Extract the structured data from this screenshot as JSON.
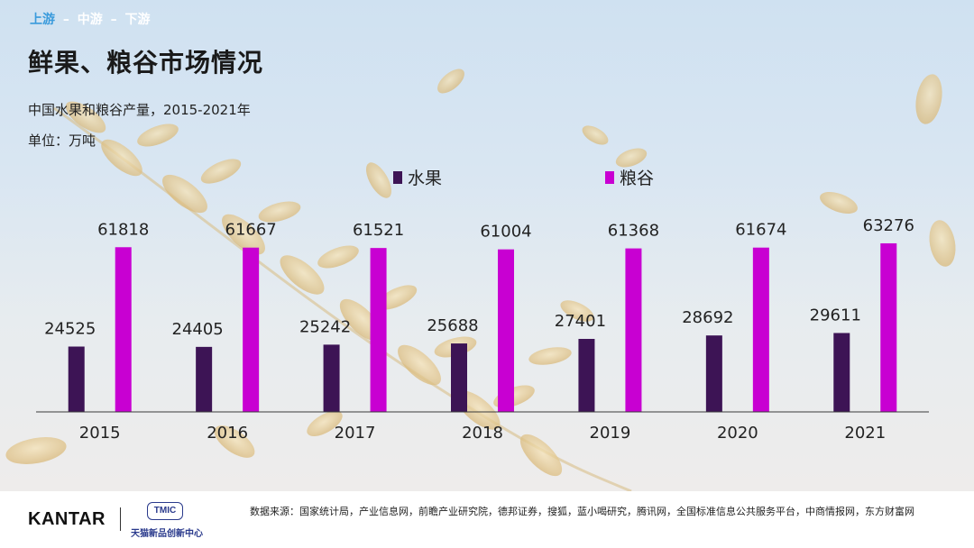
{
  "breadcrumb": {
    "items": [
      "上游",
      "中游",
      "下游"
    ],
    "separator": "–",
    "active_index": 0
  },
  "page": {
    "title": "鲜果、粮谷市场情况",
    "subtitle": "中国水果和粮谷产量，2015-2021年",
    "unit": "单位：万吨"
  },
  "chart_data": {
    "type": "bar",
    "categories": [
      "2015",
      "2016",
      "2017",
      "2018",
      "2019",
      "2020",
      "2021"
    ],
    "series": [
      {
        "name": "水果",
        "color": "#3d1455",
        "values": [
          24525,
          24405,
          25242,
          25688,
          27401,
          28692,
          29611
        ]
      },
      {
        "name": "粮谷",
        "color": "#c800d2",
        "values": [
          61818,
          61667,
          61521,
          61004,
          61368,
          61674,
          63276
        ]
      }
    ],
    "title": "中国水果和粮谷产量，2015-2021年",
    "ylabel": "",
    "ylim": [
      0,
      68000
    ],
    "grid": false,
    "legend": "top",
    "data_labels": true
  },
  "footer": {
    "kantar_logo": "KANTAR",
    "tmic_badge": "TMIC",
    "tmic_name": "天猫新品创新中心",
    "source": "数据来源：国家统计局，产业信息网，前瞻产业研究院，德邦证券，搜狐，蓝小喝研究，腾讯网，全国标准信息公共服务平台，中商情报网，东方财富网"
  }
}
